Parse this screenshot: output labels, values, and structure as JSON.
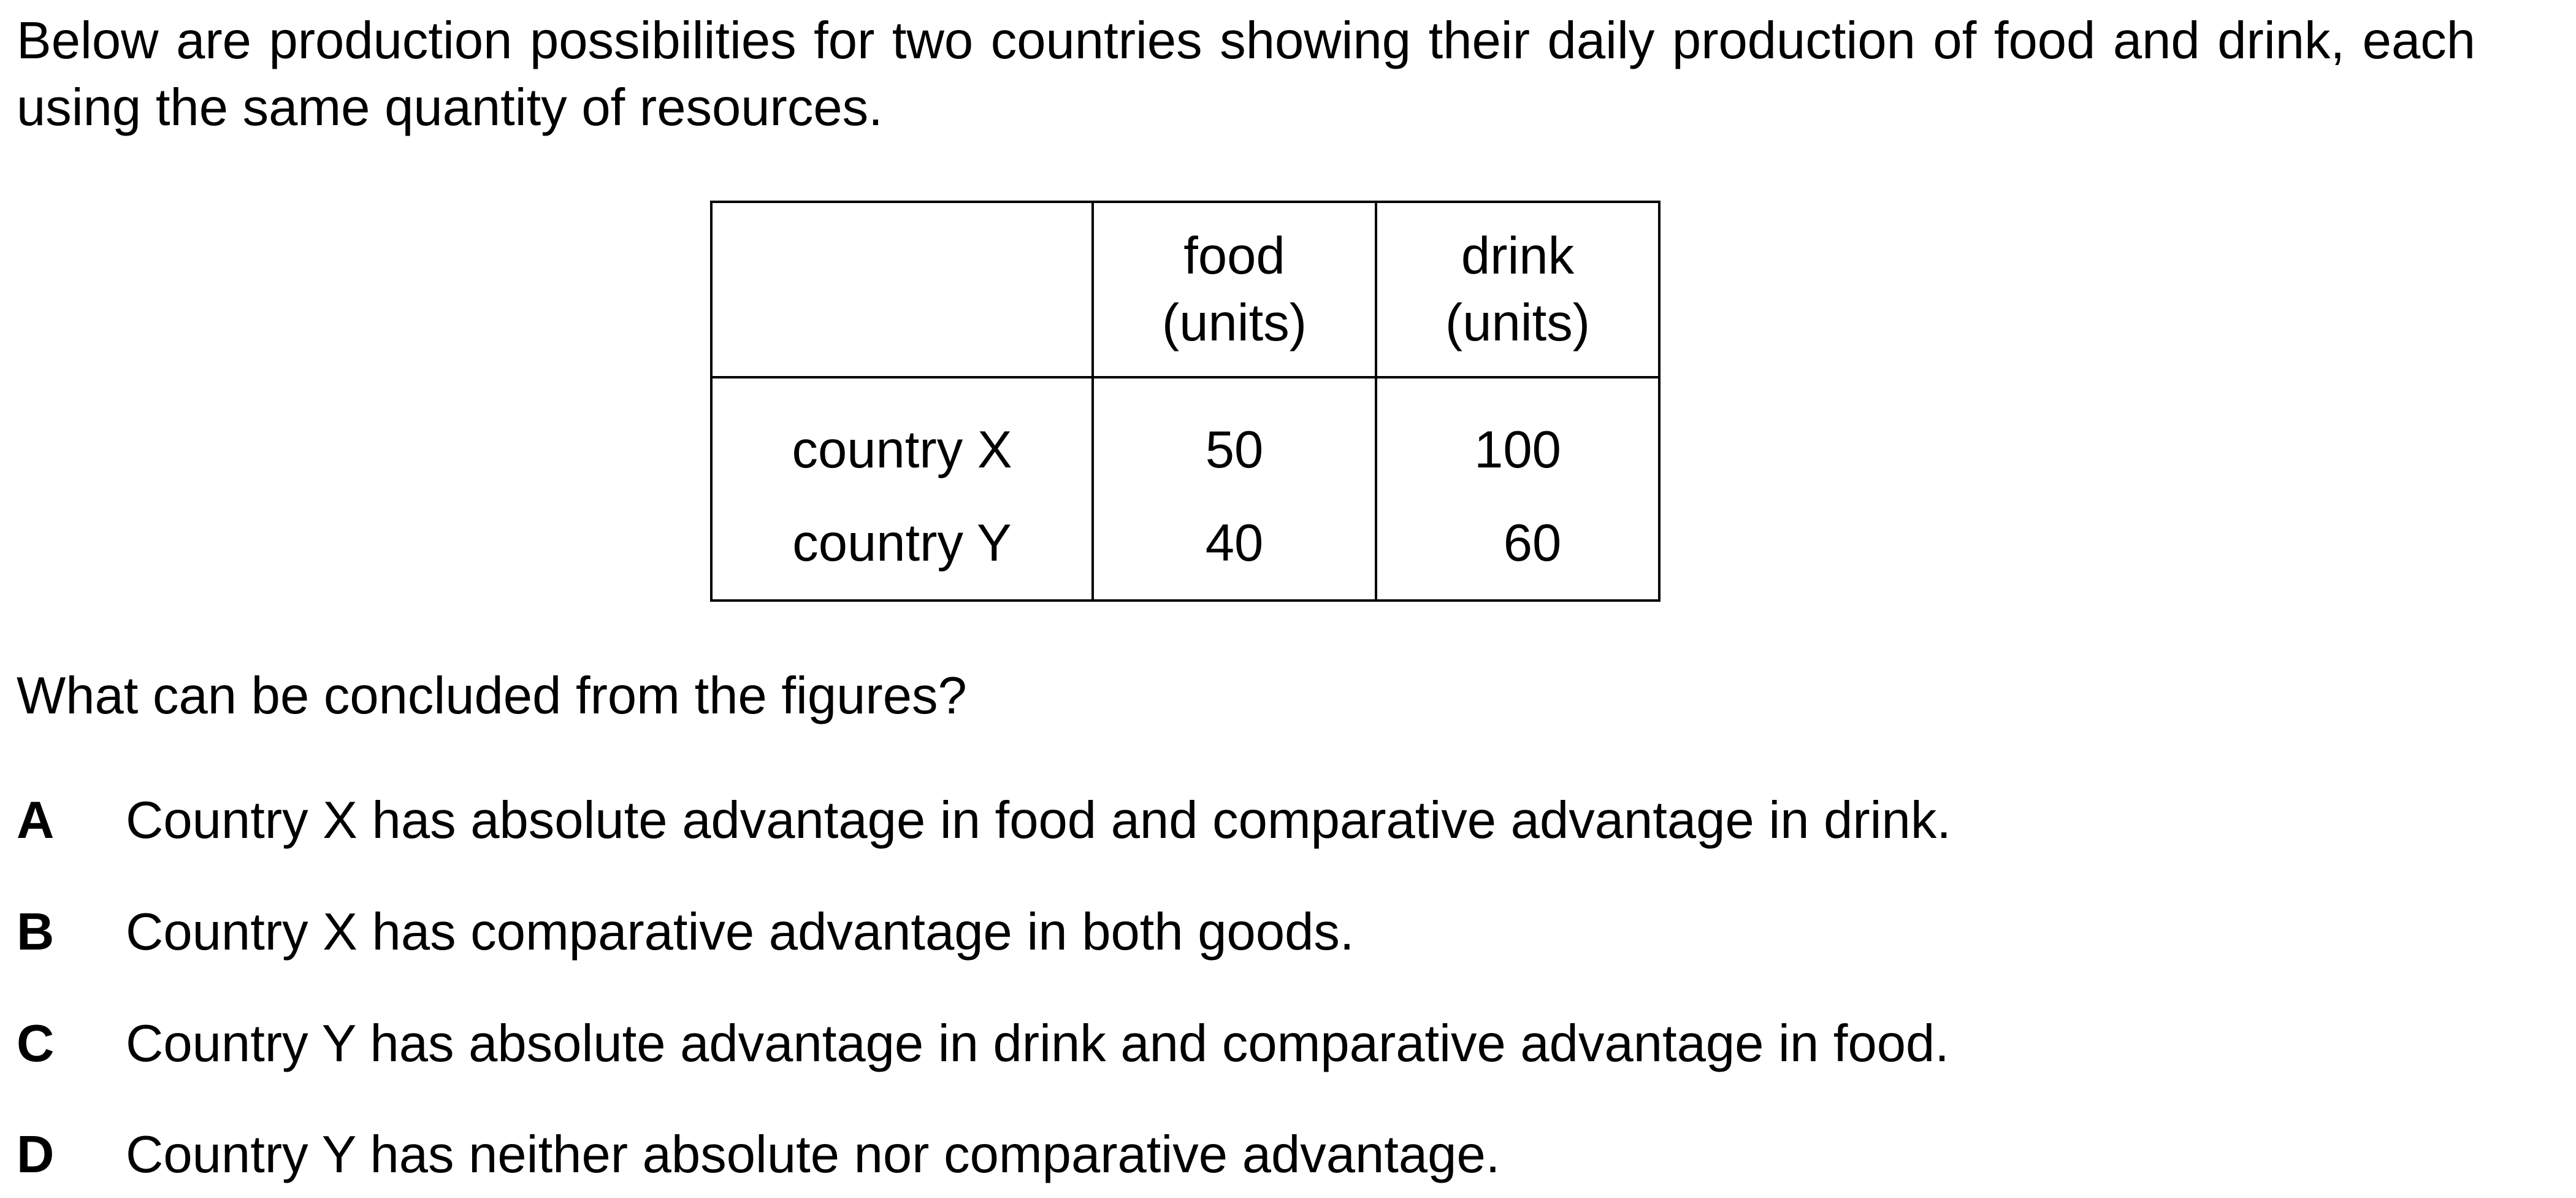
{
  "intro": "Below are production possibilities for two countries showing their daily production of food and drink, each using the same quantity of resources.",
  "table": {
    "headers": [
      "",
      [
        "food",
        "(units)"
      ],
      [
        "drink",
        "(units)"
      ]
    ],
    "rows": [
      {
        "label": "country X",
        "food": "50",
        "drink": "100"
      },
      {
        "label": "country Y",
        "food": "40",
        "drink": "60"
      }
    ]
  },
  "question": "What can be concluded from the figures?",
  "options": [
    {
      "letter": "A",
      "text": "Country X has absolute advantage in food and comparative advantage in drink."
    },
    {
      "letter": "B",
      "text": "Country X has comparative advantage in both goods."
    },
    {
      "letter": "C",
      "text": "Country Y has absolute advantage in drink and comparative advantage in food."
    },
    {
      "letter": "D",
      "text": "Country Y has neither absolute nor comparative advantage."
    }
  ]
}
